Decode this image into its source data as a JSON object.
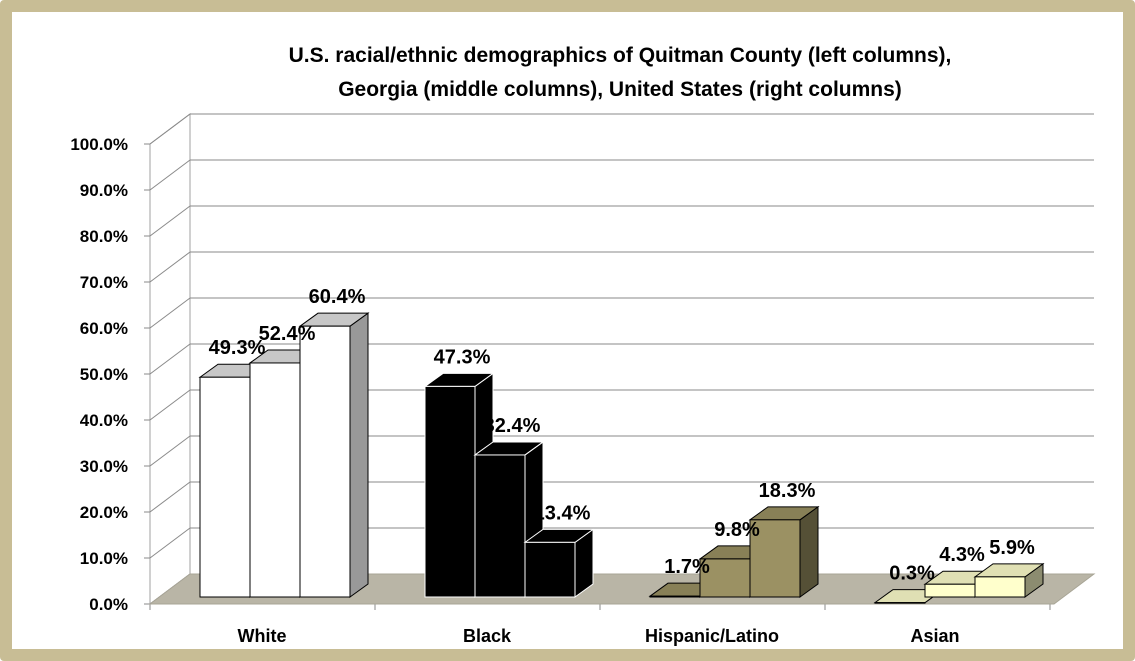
{
  "chart_data": {
    "type": "bar",
    "title": "U.S. racial/ethnic demographics of Quitman County (left columns), Georgia (middle columns), United States (right columns)",
    "title_lines": [
      "U.S. racial/ethnic demographics of Quitman County (left columns),",
      "Georgia (middle columns), United States (right columns)"
    ],
    "categories": [
      "White",
      "Black",
      "Hispanic/Latino",
      "Asian"
    ],
    "series": [
      {
        "values": [
          49.3,
          47.3,
          1.7,
          0.3
        ]
      },
      {
        "values": [
          52.4,
          32.4,
          9.8,
          4.3
        ]
      },
      {
        "values": [
          60.4,
          13.4,
          18.3,
          5.9
        ]
      }
    ],
    "value_labels": [
      [
        "49.3%",
        "52.4%",
        "60.4%"
      ],
      [
        "47.3%",
        "32.4%",
        "13.4%"
      ],
      [
        "1.7%",
        "9.8%",
        "18.3%"
      ],
      [
        "0.3%",
        "4.3%",
        "5.9%"
      ]
    ],
    "category_colors": [
      "#ffffff",
      "#000000",
      "#9b9163",
      "#ffffcc"
    ],
    "yticks": [
      "0.0%",
      "10.0%",
      "20.0%",
      "30.0%",
      "40.0%",
      "50.0%",
      "60.0%",
      "70.0%",
      "80.0%",
      "90.0%",
      "100.0%"
    ],
    "ylim": [
      0,
      100
    ],
    "grid": true,
    "legend": "none"
  }
}
